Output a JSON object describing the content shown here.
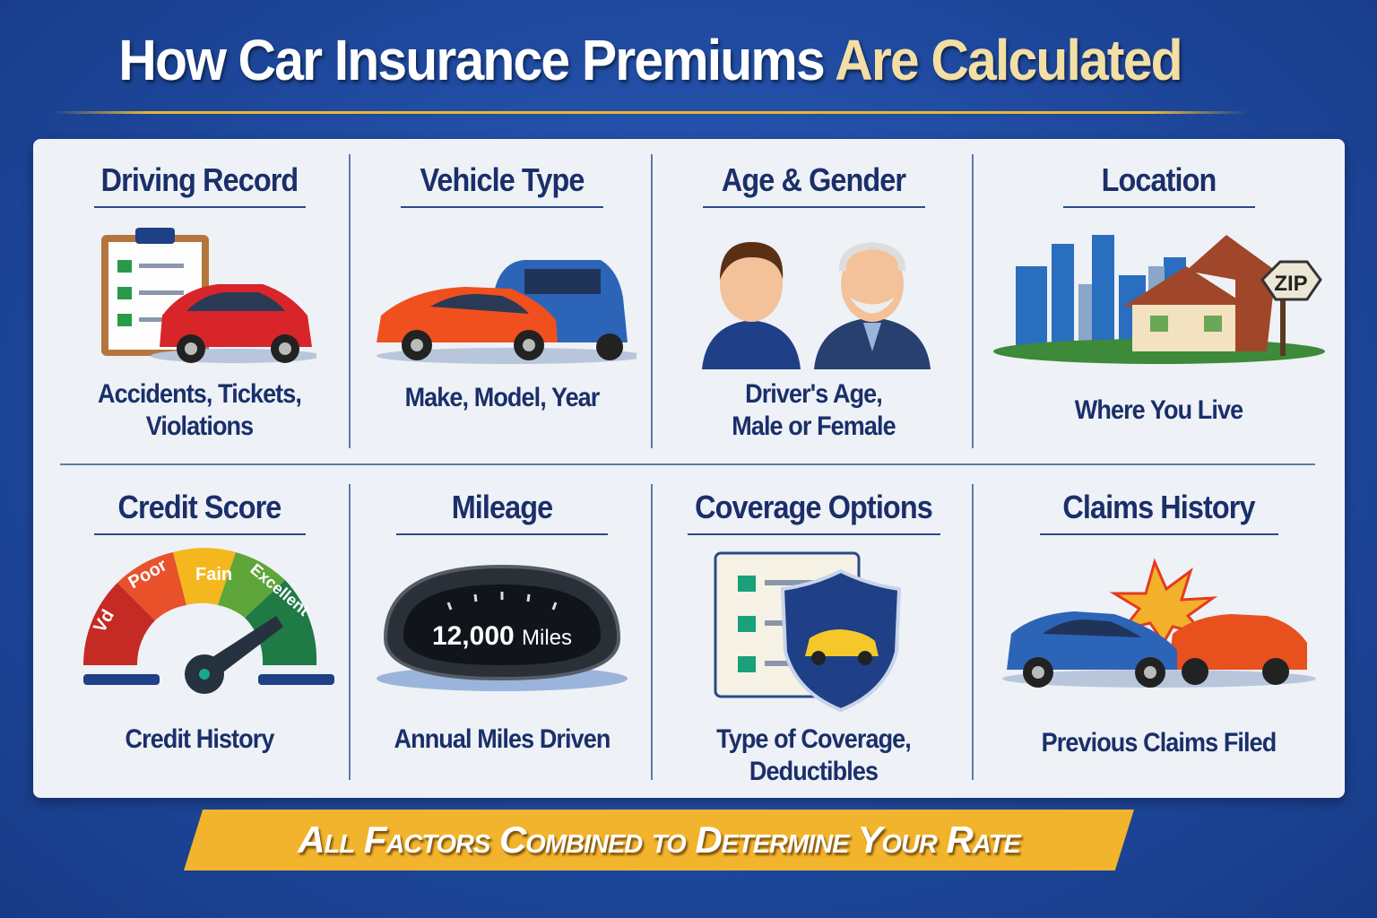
{
  "title": {
    "part1": "How Car Insurance Premiums",
    "part2": "Are Calculated"
  },
  "factors": [
    {
      "title": "Driving Record",
      "caption_lines": [
        "Accidents, Tickets,",
        "Violations"
      ],
      "icon": "clipboard-car-icon"
    },
    {
      "title": "Vehicle Type",
      "caption_lines": [
        "Make, Model, Year"
      ],
      "icon": "cars-icon"
    },
    {
      "title": "Age & Gender",
      "caption_lines": [
        "Driver's Age,",
        "Male or Female"
      ],
      "icon": "drivers-icon"
    },
    {
      "title": "Location",
      "caption_lines": [
        "Where You Live"
      ],
      "icon": "city-house-icon",
      "sign": "ZIP"
    },
    {
      "title": "Credit Score",
      "caption_lines": [
        "Credit History"
      ],
      "icon": "gauge-icon",
      "gauge_labels": [
        "Vd",
        "Poor",
        "Fain",
        "Excellent"
      ]
    },
    {
      "title": "Mileage",
      "caption_lines": [
        "Annual Miles Driven"
      ],
      "icon": "odometer-icon",
      "odometer": "12,000",
      "odometer_unit": "Miles"
    },
    {
      "title": "Coverage Options",
      "caption_lines": [
        "Type of Coverage,",
        "Deductibles"
      ],
      "icon": "policy-shield-icon"
    },
    {
      "title": "Claims History",
      "caption_lines": [
        "Previous Claims Filed"
      ],
      "icon": "crash-icon"
    }
  ],
  "banner": "All Factors Combined to Determine Your Rate",
  "colors": {
    "background": "#1f4aa0",
    "panel": "#eef1f6",
    "text": "#1a2f6a",
    "banner": "#f2b42c",
    "accent": "#f3dfa4"
  }
}
